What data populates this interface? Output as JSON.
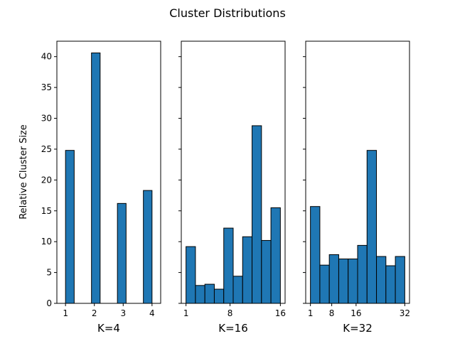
{
  "chart_data": {
    "type": "bar",
    "title": "Cluster Distributions",
    "ylabel": "Relative Cluster Size",
    "ylim": [
      0,
      42.5
    ],
    "yticks": [
      0,
      5,
      10,
      15,
      20,
      25,
      30,
      35,
      40
    ],
    "sharey": true,
    "bar_color": "#1f77b4",
    "edge_color": "#000000",
    "panels": [
      {
        "xlabel": "K=4",
        "xlim": [
          0.7,
          4.3
        ],
        "xticks": [
          1,
          2,
          3,
          4
        ],
        "bins": [
          {
            "start": 1.0,
            "end": 1.3,
            "value": 24.8
          },
          {
            "start": 1.9,
            "end": 2.2,
            "value": 40.6
          },
          {
            "start": 2.8,
            "end": 3.1,
            "value": 16.2
          },
          {
            "start": 3.7,
            "end": 4.0,
            "value": 18.3
          }
        ]
      },
      {
        "xlabel": "K=16",
        "xlim": [
          0.25,
          16.75
        ],
        "xticks": [
          1,
          8,
          16
        ],
        "bins": [
          {
            "start": 1.0,
            "end": 2.5,
            "value": 9.2
          },
          {
            "start": 2.5,
            "end": 4.0,
            "value": 2.9
          },
          {
            "start": 4.0,
            "end": 5.5,
            "value": 3.1
          },
          {
            "start": 5.5,
            "end": 7.0,
            "value": 2.3
          },
          {
            "start": 7.0,
            "end": 8.5,
            "value": 12.2
          },
          {
            "start": 8.5,
            "end": 10.0,
            "value": 4.4
          },
          {
            "start": 10.0,
            "end": 11.5,
            "value": 10.8
          },
          {
            "start": 11.5,
            "end": 13.0,
            "value": 28.8
          },
          {
            "start": 13.0,
            "end": 14.5,
            "value": 10.2
          },
          {
            "start": 14.5,
            "end": 16.0,
            "value": 15.5
          }
        ]
      },
      {
        "xlabel": "K=32",
        "xlim": [
          -0.55,
          33.55
        ],
        "xticks": [
          1,
          8,
          16,
          32
        ],
        "bins": [
          {
            "start": 1.0,
            "end": 4.1,
            "value": 15.7
          },
          {
            "start": 4.1,
            "end": 7.2,
            "value": 6.2
          },
          {
            "start": 7.2,
            "end": 10.3,
            "value": 7.9
          },
          {
            "start": 10.3,
            "end": 13.4,
            "value": 7.2
          },
          {
            "start": 13.4,
            "end": 16.5,
            "value": 7.2
          },
          {
            "start": 16.5,
            "end": 19.6,
            "value": 9.4
          },
          {
            "start": 19.6,
            "end": 22.7,
            "value": 24.8
          },
          {
            "start": 22.7,
            "end": 25.8,
            "value": 7.6
          },
          {
            "start": 25.8,
            "end": 28.9,
            "value": 6.1
          },
          {
            "start": 28.9,
            "end": 32.0,
            "value": 7.6
          }
        ]
      }
    ]
  }
}
